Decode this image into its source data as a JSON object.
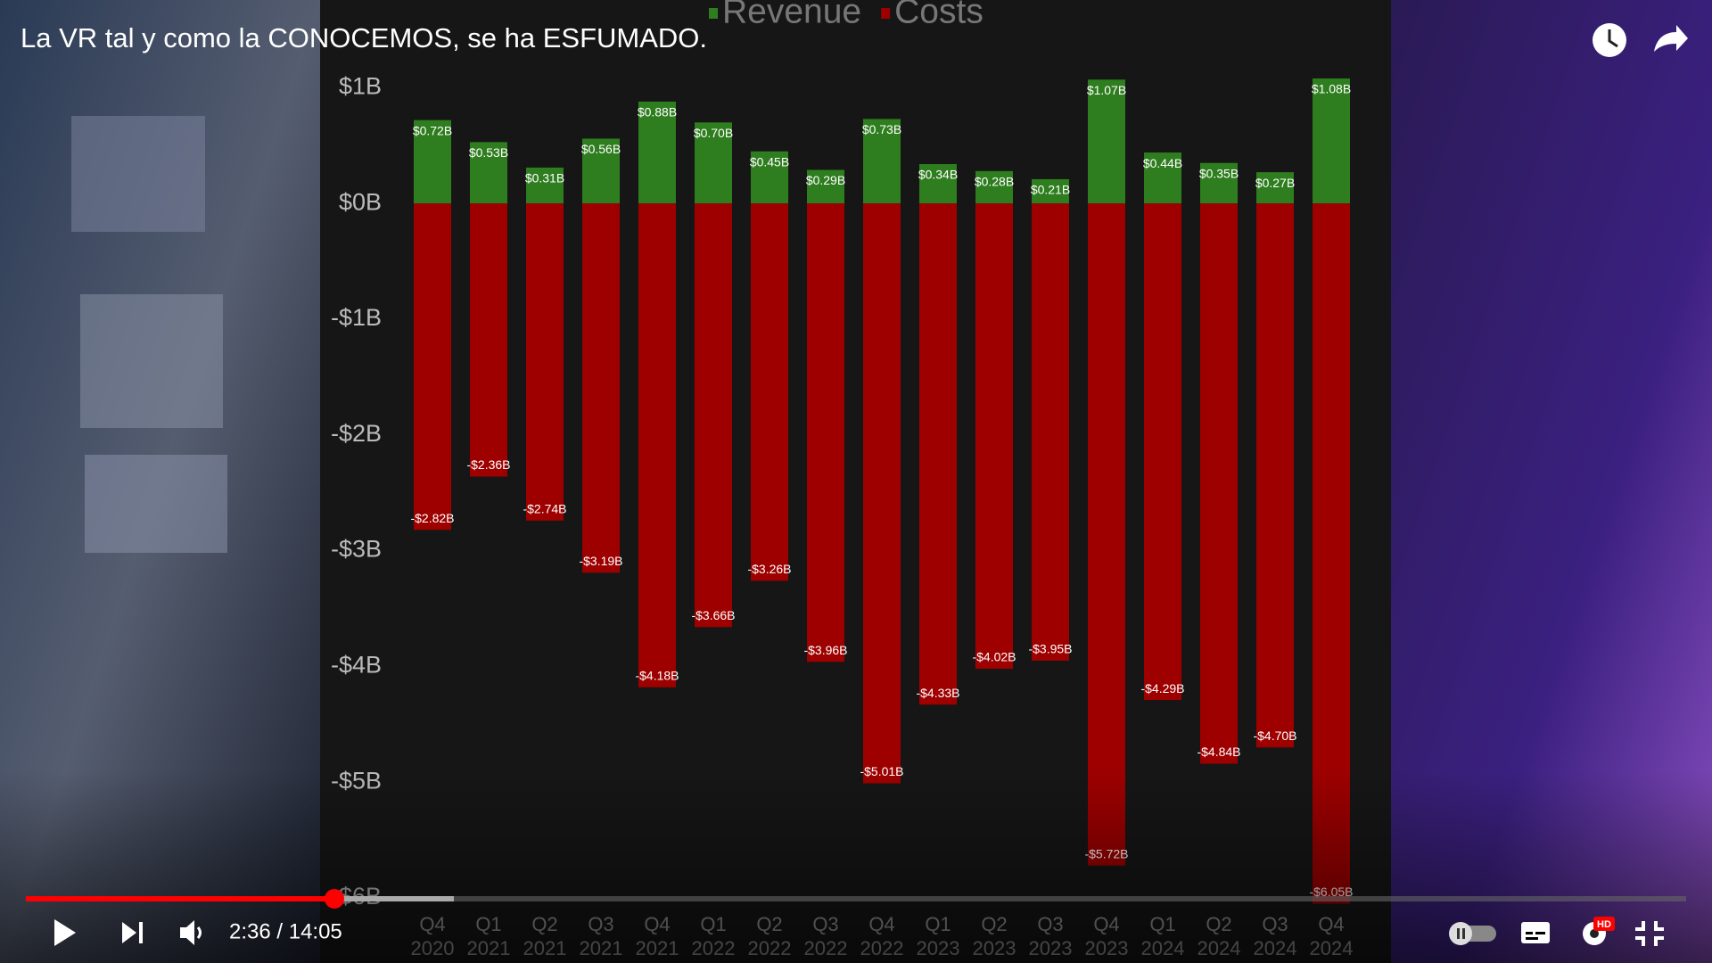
{
  "video": {
    "title": "La VR tal y como la CONOCEMOS, se ha ESFUMADO.",
    "time": "2:36 / 14:05",
    "hd_badge": "HD"
  },
  "chart_data": {
    "type": "bar",
    "categories": [
      "Q4 2020",
      "Q1 2021",
      "Q2 2021",
      "Q3 2021",
      "Q4 2021",
      "Q1 2022",
      "Q2 2022",
      "Q3 2022",
      "Q4 2022",
      "Q1 2023",
      "Q2 2023",
      "Q3 2023",
      "Q4 2023",
      "Q1 2024",
      "Q2 2024",
      "Q3 2024",
      "Q4 2024"
    ],
    "series": [
      {
        "name": "Revenue",
        "color": "#2e7d1e",
        "values": [
          0.72,
          0.53,
          0.31,
          0.56,
          0.88,
          0.7,
          0.45,
          0.29,
          0.73,
          0.34,
          0.28,
          0.21,
          1.07,
          0.44,
          0.35,
          0.27,
          1.08
        ],
        "value_labels": [
          "$0.72B",
          "$0.53B",
          "$0.31B",
          "$0.56B",
          "$0.88B",
          "$0.70B",
          "$0.45B",
          "$0.29B",
          "$0.73B",
          "$0.34B",
          "$0.28B",
          "$0.21B",
          "$1.07B",
          "$0.44B",
          "$0.35B",
          "$0.27B",
          "$1.08B"
        ]
      },
      {
        "name": "Costs",
        "color": "#9e0000",
        "values": [
          -2.82,
          -2.36,
          -2.74,
          -3.19,
          -4.18,
          -3.66,
          -3.26,
          -3.96,
          -5.01,
          -4.33,
          -4.02,
          -3.95,
          -5.72,
          -4.29,
          -4.84,
          -4.7,
          -6.05
        ],
        "value_labels": [
          "-$2.82B",
          "-$2.36B",
          "-$2.74B",
          "-$3.19B",
          "-$4.18B",
          "-$3.66B",
          "-$3.26B",
          "-$3.96B",
          "-$5.01B",
          "-$4.33B",
          "-$4.02B",
          "-$3.95B",
          "-$5.72B",
          "-$4.29B",
          "-$4.84B",
          "-$4.70B",
          "-$6.05B"
        ]
      }
    ],
    "ylim": [
      -6.2,
      1.75
    ],
    "yticks": [
      {
        "value": 1,
        "label": "$1B"
      },
      {
        "value": 0,
        "label": "$0B"
      },
      {
        "value": -1,
        "label": "-$1B"
      },
      {
        "value": -2,
        "label": "-$2B"
      },
      {
        "value": -3,
        "label": "-$3B"
      },
      {
        "value": -4,
        "label": "-$4B"
      },
      {
        "value": -5,
        "label": "-$5B"
      },
      {
        "value": -6,
        "label": "-$6B"
      }
    ]
  }
}
